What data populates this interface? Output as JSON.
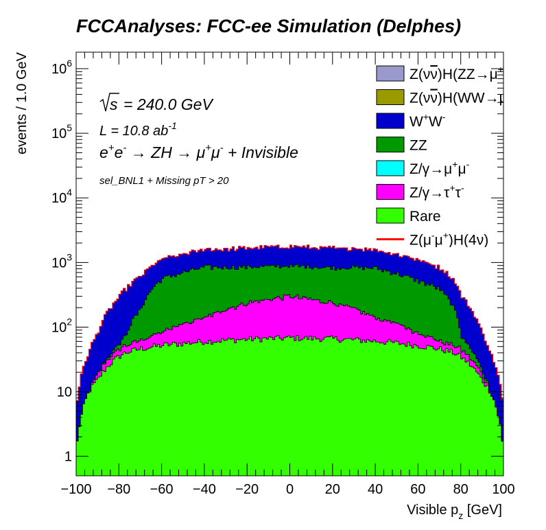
{
  "chart_data": {
    "type": "area",
    "title": "FCCAnalyses: FCC-ee Simulation (Delphes)",
    "xlabel": "Visible p",
    "xlabel_sub": "z",
    "xlabel_unit": " [GeV]",
    "ylabel": "events / 1.0 GeV",
    "xlim": [
      -100,
      100
    ],
    "ylim": [
      0.5,
      1800000
    ],
    "y_log": true,
    "stacked": true,
    "grid": false,
    "x_ticks": [
      "−100",
      "−80",
      "−60",
      "−40",
      "−20",
      "0",
      "20",
      "40",
      "60",
      "80",
      "100"
    ],
    "y_ticks": [
      {
        "value": 1,
        "base": "1",
        "exp": ""
      },
      {
        "value": 10,
        "base": "10",
        "exp": ""
      },
      {
        "value": 100,
        "base": "10",
        "exp": "2"
      },
      {
        "value": 1000,
        "base": "10",
        "exp": "3"
      },
      {
        "value": 10000,
        "base": "10",
        "exp": "4"
      },
      {
        "value": 100000,
        "base": "10",
        "exp": "5"
      },
      {
        "value": 1000000,
        "base": "10",
        "exp": "6"
      }
    ],
    "annotations": {
      "sqrt_s": "240.0 GeV",
      "lumi": "L = 10.8 ab",
      "lumi_exp": "-1",
      "process": "e+e- → ZH → μ+μ- + Invisible",
      "selection": "sel_BNL1 + Missing pT > 20"
    },
    "x_nodes": [
      -100,
      -97,
      -94,
      -90,
      -85,
      -80,
      -77,
      -70,
      -60,
      -40,
      -20,
      0,
      20,
      40,
      60,
      70,
      77,
      80,
      85,
      90,
      94,
      97,
      100
    ],
    "series": [
      {
        "name": "Rare",
        "color": "#33ff00",
        "values": [
          1,
          5,
          10,
          15,
          25,
          35,
          40,
          46,
          52,
          60,
          65,
          68,
          66,
          61,
          52,
          46,
          40,
          35,
          25,
          15,
          10,
          5,
          1
        ]
      },
      {
        "name": "Z/γ→τ+τ-",
        "color": "#ff00ff",
        "values": [
          0,
          0,
          0,
          3,
          7,
          10,
          12,
          15,
          30,
          80,
          170,
          230,
          170,
          80,
          30,
          15,
          12,
          10,
          7,
          3,
          0,
          0,
          0
        ]
      },
      {
        "name": "Z/γ→μ+μ-",
        "color": "#00ffff",
        "values": [
          0,
          0,
          0,
          0,
          0,
          0,
          0,
          0,
          0,
          0,
          0,
          0,
          0,
          0,
          0,
          0,
          0,
          0,
          0,
          0,
          0,
          0,
          0
        ]
      },
      {
        "name": "ZZ",
        "color": "#009900",
        "values": [
          0,
          0,
          0,
          0,
          2,
          8,
          20,
          120,
          470,
          700,
          620,
          580,
          600,
          680,
          440,
          330,
          140,
          30,
          12,
          3,
          0,
          0,
          0
        ]
      },
      {
        "name": "W+W-",
        "color": "#0000cc",
        "values": [
          4,
          15,
          30,
          60,
          140,
          230,
          310,
          420,
          560,
          720,
          830,
          880,
          850,
          760,
          580,
          440,
          330,
          240,
          140,
          60,
          30,
          15,
          4
        ]
      },
      {
        "name": "Z(νν̄)H(WW→μ+νμ-ν̄)",
        "color": "#999900",
        "values": [
          0,
          0,
          0,
          0,
          0,
          0,
          0,
          0,
          0,
          0,
          0,
          0,
          0,
          0,
          0,
          0,
          0,
          0,
          0,
          0,
          0,
          0,
          0
        ]
      },
      {
        "name": "Z(νν̄)H(ZZ→μ+μ-νν̄)",
        "color": "#9999cc",
        "values": [
          0,
          0,
          0,
          0,
          0,
          0,
          0,
          0,
          0,
          0,
          0,
          0,
          0,
          0,
          0,
          0,
          0,
          0,
          0,
          0,
          0,
          0,
          0
        ]
      }
    ],
    "signal": {
      "name": "Z(μ-μ+)H(4ν)",
      "color": "#ff0000",
      "values": [
        0,
        0,
        0,
        0,
        0,
        0,
        0,
        0,
        0,
        0,
        0,
        0,
        0,
        0,
        0,
        0,
        0,
        0,
        0,
        0,
        0,
        0,
        0
      ]
    },
    "legend": {
      "placement": "top-right",
      "entries": [
        {
          "name": "Z(νν̄)H(ZZ→μ+μ-νν̄)",
          "color": "#9999cc",
          "kind": "box",
          "parts": [
            [
              "Z(ν",
              ""
            ],
            [
              "ν",
              "bar"
            ],
            [
              ")H(ZZ→μ",
              ""
            ],
            [
              "+",
              "sup"
            ],
            [
              "μ",
              ""
            ],
            [
              "-",
              "sup"
            ],
            [
              "ν",
              ""
            ],
            [
              "ν",
              "barsup"
            ],
            [
              ")",
              ""
            ]
          ]
        },
        {
          "name": "Z(νν̄)H(WW→μ+νμ-ν̄)",
          "color": "#999900",
          "kind": "box",
          "parts": [
            [
              "Z(ν",
              ""
            ],
            [
              "ν",
              "bar"
            ],
            [
              ")H(WW→μ",
              ""
            ],
            [
              "+",
              "sup"
            ],
            [
              "νμ",
              ""
            ],
            [
              "-",
              "sup"
            ],
            [
              "ν",
              "bar"
            ],
            [
              ")",
              ""
            ]
          ]
        },
        {
          "name": "W+W-",
          "color": "#0000cc",
          "kind": "box",
          "parts": [
            [
              "W",
              ""
            ],
            [
              "+",
              "sup"
            ],
            [
              "W",
              ""
            ],
            [
              "-",
              "sup"
            ]
          ]
        },
        {
          "name": "ZZ",
          "color": "#009900",
          "kind": "box",
          "parts": [
            [
              "ZZ",
              ""
            ]
          ]
        },
        {
          "name": "Z/γ→μ+μ-",
          "color": "#00ffff",
          "kind": "box",
          "parts": [
            [
              "Z/γ→μ",
              ""
            ],
            [
              "+",
              "sup"
            ],
            [
              "μ",
              ""
            ],
            [
              "-",
              "sup"
            ]
          ]
        },
        {
          "name": "Z/γ→τ+τ-",
          "color": "#ff00ff",
          "kind": "box",
          "parts": [
            [
              "Z/γ→τ",
              ""
            ],
            [
              "+",
              "sup"
            ],
            [
              "τ",
              ""
            ],
            [
              "-",
              "sup"
            ]
          ]
        },
        {
          "name": "Rare",
          "color": "#33ff00",
          "kind": "box",
          "parts": [
            [
              "Rare",
              ""
            ]
          ]
        },
        {
          "name": "Z(μ-μ+)H(4ν)",
          "color": "#ff0000",
          "kind": "line",
          "parts": [
            [
              "Z(μ",
              ""
            ],
            [
              "-",
              "sup"
            ],
            [
              "μ",
              ""
            ],
            [
              "+",
              "sup"
            ],
            [
              ")H(4ν)",
              ""
            ]
          ]
        }
      ]
    }
  }
}
